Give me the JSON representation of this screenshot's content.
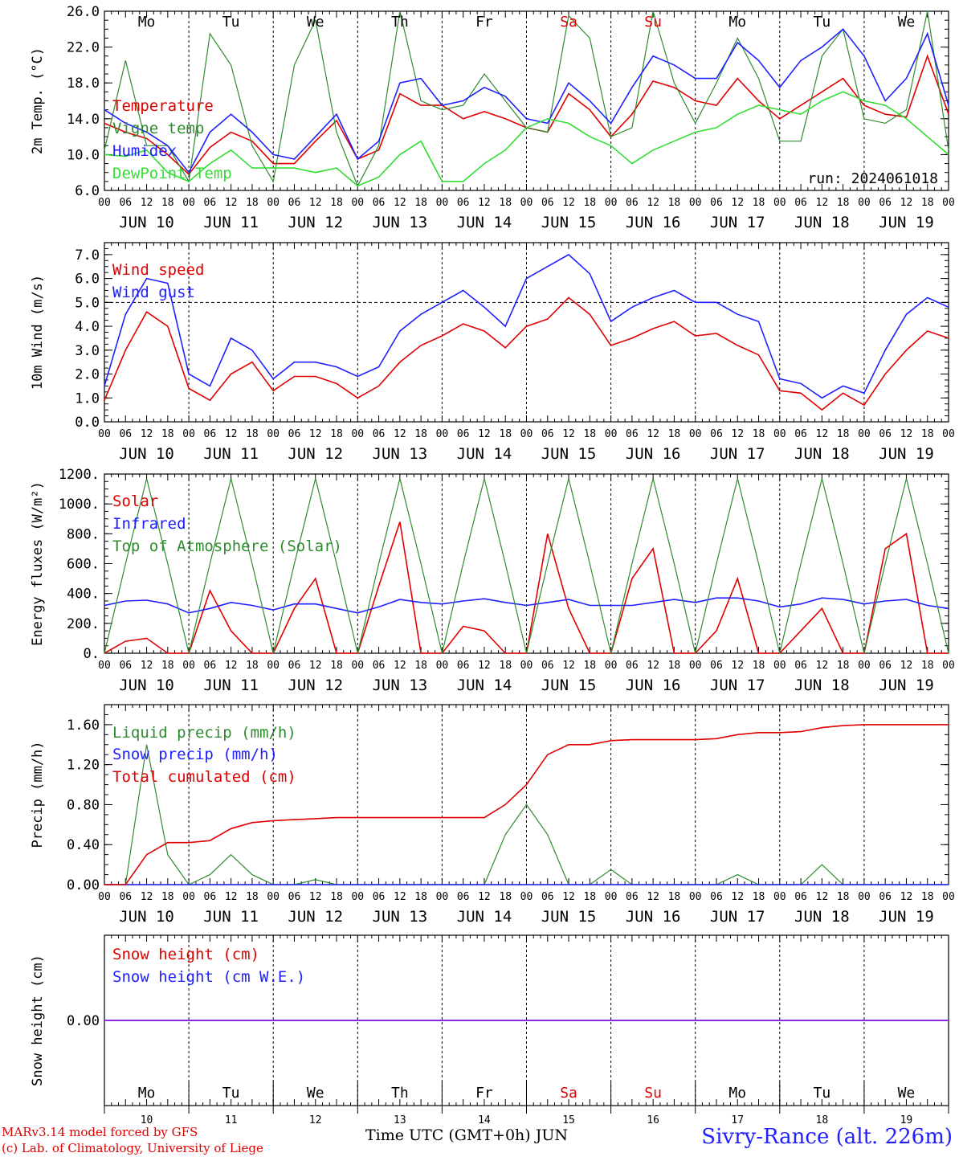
{
  "panel_day_labels": [
    "Mo",
    "Tu",
    "We",
    "Th",
    "Fr",
    "Sa",
    "Su",
    "Mo",
    "Tu",
    "We"
  ],
  "weekend_color": "#e00000",
  "hour_ticks": [
    "00",
    "06",
    "12",
    "18"
  ],
  "date_labels": [
    "JUN 10",
    "JUN 11",
    "JUN 12",
    "JUN 13",
    "JUN 14",
    "JUN 15",
    "JUN 16",
    "JUN 17",
    "JUN 18",
    "JUN 19"
  ],
  "bottom_day_numbers": [
    "10",
    "11",
    "12",
    "13",
    "14",
    "15",
    "16",
    "17",
    "18",
    "19"
  ],
  "footer": {
    "model": "MARv3.14 model forced by GFS",
    "lab": "(c) Lab. of Climatology, University of Liege",
    "axis_title": "Time UTC (GMT+0h) JUN",
    "station": "Sivry-Rance (alt. 226m)"
  },
  "chart_data": [
    {
      "type": "line",
      "ylabel": "2m Temp. (°C)",
      "ylim": [
        6,
        26
      ],
      "yticks": [
        "6.0",
        "10.0",
        "14.0",
        "18.0",
        "22.0",
        "26.0"
      ],
      "annotation": "run: 2024061018",
      "x_hours": [
        0,
        6,
        12,
        18,
        24,
        30,
        36,
        42,
        48,
        54,
        60,
        66,
        72,
        78,
        84,
        90,
        96,
        102,
        108,
        114,
        120,
        126,
        132,
        138,
        144,
        150,
        156,
        162,
        168,
        174,
        180,
        186,
        192,
        198,
        204,
        210,
        216,
        222,
        228,
        234,
        240
      ],
      "series": [
        {
          "name": "Temperature",
          "color": "#e00000",
          "values": [
            13.5,
            12.5,
            11.8,
            10.0,
            7.8,
            10.8,
            12.5,
            11.5,
            9.0,
            9.0,
            11.5,
            13.8,
            9.5,
            10.5,
            16.8,
            15.5,
            15.5,
            14.0,
            14.8,
            14.0,
            13.0,
            12.5,
            16.8,
            15.0,
            12.0,
            14.5,
            18.2,
            17.5,
            16.0,
            15.5,
            18.5,
            16.0,
            14.0,
            15.5,
            17.0,
            18.5,
            15.5,
            14.5,
            14.2,
            21.0,
            14.5
          ]
        },
        {
          "name": "Vigne temp",
          "color": "#2e8b2e",
          "values": [
            10.5,
            20.5,
            11.0,
            11.0,
            7.0,
            23.5,
            20.0,
            11.0,
            7.0,
            20.0,
            25.0,
            12.5,
            6.5,
            11.0,
            26.0,
            16.0,
            15.0,
            15.5,
            19.0,
            16.0,
            13.0,
            12.5,
            25.5,
            23.0,
            12.0,
            13.0,
            26.0,
            18.0,
            13.5,
            18.0,
            23.0,
            18.5,
            11.5,
            11.5,
            21.0,
            24.0,
            14.0,
            13.5,
            15.0,
            26.0,
            10.5
          ]
        },
        {
          "name": "Humidex",
          "color": "#2020ff",
          "values": [
            15.0,
            13.5,
            12.5,
            11.0,
            8.0,
            12.5,
            14.5,
            12.5,
            10.0,
            9.5,
            12.0,
            14.5,
            9.5,
            11.5,
            18.0,
            18.5,
            15.5,
            16.0,
            17.5,
            16.5,
            14.0,
            13.5,
            18.0,
            16.0,
            13.5,
            17.5,
            21.0,
            20.0,
            18.5,
            18.5,
            22.5,
            20.5,
            17.5,
            20.5,
            22.0,
            24.0,
            21.0,
            16.0,
            18.5,
            23.5,
            15.5
          ]
        },
        {
          "name": "DewPoint Temp",
          "color": "#33dd33",
          "values": [
            10.0,
            9.8,
            10.5,
            8.0,
            7.0,
            9.0,
            10.5,
            8.5,
            8.5,
            8.5,
            8.0,
            8.5,
            6.5,
            7.5,
            10.0,
            11.5,
            7.0,
            7.0,
            9.0,
            10.5,
            13.0,
            14.0,
            13.5,
            12.0,
            11.0,
            9.0,
            10.5,
            11.5,
            12.5,
            13.0,
            14.5,
            15.5,
            15.0,
            14.5,
            16.0,
            17.0,
            16.0,
            15.5,
            14.0,
            12.0,
            10.0
          ]
        }
      ]
    },
    {
      "type": "line",
      "ylabel": "10m Wind (m/s)",
      "ylim": [
        0,
        7.5
      ],
      "yticks": [
        "0.0",
        "1.0",
        "2.0",
        "3.0",
        "4.0",
        "5.0",
        "6.0",
        "7.0"
      ],
      "reference_line": 5.0,
      "x_hours": [
        0,
        6,
        12,
        18,
        24,
        30,
        36,
        42,
        48,
        54,
        60,
        66,
        72,
        78,
        84,
        90,
        96,
        102,
        108,
        114,
        120,
        126,
        132,
        138,
        144,
        150,
        156,
        162,
        168,
        174,
        180,
        186,
        192,
        198,
        204,
        210,
        216,
        222,
        228,
        234,
        240
      ],
      "series": [
        {
          "name": "Wind speed",
          "color": "#e00000",
          "values": [
            0.9,
            3.0,
            4.6,
            4.0,
            1.4,
            0.9,
            2.0,
            2.5,
            1.3,
            1.9,
            1.9,
            1.6,
            1.0,
            1.5,
            2.5,
            3.2,
            3.6,
            4.1,
            3.8,
            3.1,
            4.0,
            4.3,
            5.2,
            4.5,
            3.2,
            3.5,
            3.9,
            4.2,
            3.6,
            3.7,
            3.2,
            2.8,
            1.3,
            1.2,
            0.5,
            1.2,
            0.7,
            2.0,
            3.0,
            3.8,
            3.5
          ]
        },
        {
          "name": "Wind gust",
          "color": "#2020ff",
          "values": [
            1.5,
            4.5,
            6.0,
            5.8,
            2.0,
            1.5,
            3.5,
            3.0,
            1.8,
            2.5,
            2.5,
            2.3,
            1.9,
            2.3,
            3.8,
            4.5,
            5.0,
            5.5,
            4.8,
            4.0,
            6.0,
            6.5,
            7.0,
            6.2,
            4.2,
            4.8,
            5.2,
            5.5,
            5.0,
            5.0,
            4.5,
            4.2,
            1.8,
            1.6,
            1.0,
            1.5,
            1.2,
            3.0,
            4.5,
            5.2,
            4.8
          ]
        }
      ]
    },
    {
      "type": "line",
      "ylabel": "Energy fluxes (W/m²)",
      "ylim": [
        0,
        1200
      ],
      "yticks": [
        "0.",
        "200.",
        "400.",
        "600.",
        "800.",
        "1000.",
        "1200."
      ],
      "x_hours": [
        0,
        6,
        12,
        18,
        24,
        30,
        36,
        42,
        48,
        54,
        60,
        66,
        72,
        78,
        84,
        90,
        96,
        102,
        108,
        114,
        120,
        126,
        132,
        138,
        144,
        150,
        156,
        162,
        168,
        174,
        180,
        186,
        192,
        198,
        204,
        210,
        216,
        222,
        228,
        234,
        240
      ],
      "series": [
        {
          "name": "Solar",
          "color": "#e00000",
          "values": [
            0,
            80,
            100,
            0,
            0,
            420,
            150,
            0,
            0,
            300,
            500,
            0,
            0,
            450,
            880,
            0,
            0,
            180,
            150,
            0,
            0,
            800,
            300,
            0,
            0,
            500,
            700,
            0,
            0,
            150,
            500,
            0,
            0,
            150,
            300,
            0,
            0,
            700,
            800,
            0,
            0
          ]
        },
        {
          "name": "Infrared",
          "color": "#2020ff",
          "values": [
            320,
            350,
            355,
            330,
            270,
            300,
            340,
            320,
            290,
            330,
            330,
            300,
            270,
            310,
            360,
            340,
            330,
            350,
            365,
            340,
            320,
            340,
            360,
            320,
            320,
            320,
            340,
            360,
            340,
            370,
            370,
            350,
            310,
            330,
            370,
            360,
            330,
            350,
            360,
            320,
            300
          ]
        },
        {
          "name": "Top of Atmosphere (Solar)",
          "color": "#2e8b2e",
          "values": [
            0,
            600,
            1170,
            600,
            0,
            600,
            1170,
            600,
            0,
            600,
            1170,
            600,
            0,
            600,
            1170,
            600,
            0,
            600,
            1170,
            600,
            0,
            600,
            1170,
            600,
            0,
            600,
            1170,
            600,
            0,
            600,
            1170,
            600,
            0,
            600,
            1170,
            600,
            0,
            600,
            1170,
            600,
            0
          ]
        }
      ]
    },
    {
      "type": "line",
      "ylabel": "Precip (mm/h)",
      "ylim": [
        0,
        1.8
      ],
      "yticks": [
        "0.00",
        "0.40",
        "0.80",
        "1.20",
        "1.60"
      ],
      "x_hours": [
        0,
        6,
        12,
        18,
        24,
        30,
        36,
        42,
        48,
        54,
        60,
        66,
        72,
        78,
        84,
        90,
        96,
        102,
        108,
        114,
        120,
        126,
        132,
        138,
        144,
        150,
        156,
        162,
        168,
        174,
        180,
        186,
        192,
        198,
        204,
        210,
        216,
        222,
        228,
        234,
        240
      ],
      "series": [
        {
          "name": "Liquid precip (mm/h)",
          "color": "#2e8b2e",
          "values": [
            0,
            0,
            1.4,
            0.3,
            0,
            0.1,
            0.3,
            0.1,
            0,
            0,
            0.05,
            0,
            0,
            0,
            0,
            0,
            0,
            0,
            0,
            0.5,
            0.8,
            0.5,
            0,
            0,
            0.15,
            0,
            0,
            0,
            0,
            0,
            0.1,
            0,
            0,
            0,
            0.2,
            0,
            0,
            0,
            0,
            0,
            0
          ]
        },
        {
          "name": "Snow precip (mm/h)",
          "color": "#2020ff",
          "values": [
            0,
            0,
            0,
            0,
            0,
            0,
            0,
            0,
            0,
            0,
            0,
            0,
            0,
            0,
            0,
            0,
            0,
            0,
            0,
            0,
            0,
            0,
            0,
            0,
            0,
            0,
            0,
            0,
            0,
            0,
            0,
            0,
            0,
            0,
            0,
            0,
            0,
            0,
            0,
            0,
            0
          ]
        },
        {
          "name": "Total cumulated (cm)",
          "color": "#e00000",
          "values": [
            0,
            0,
            0.3,
            0.42,
            0.42,
            0.44,
            0.56,
            0.62,
            0.64,
            0.65,
            0.66,
            0.67,
            0.67,
            0.67,
            0.67,
            0.67,
            0.67,
            0.67,
            0.67,
            0.8,
            1.0,
            1.3,
            1.4,
            1.4,
            1.44,
            1.45,
            1.45,
            1.45,
            1.45,
            1.46,
            1.5,
            1.52,
            1.52,
            1.53,
            1.57,
            1.59,
            1.6,
            1.6,
            1.6,
            1.6,
            1.6
          ]
        }
      ]
    },
    {
      "type": "line",
      "ylabel": "Snow height (cm)",
      "ylim": [
        -1,
        1
      ],
      "yticks": [
        "0.00"
      ],
      "x_hours": [
        0,
        240
      ],
      "series": [
        {
          "name": "Snow height (cm)",
          "color": "#e00000",
          "values": [
            0,
            0
          ]
        },
        {
          "name": "Snow height (cm W.E.)",
          "color": "#2020ff",
          "values": [
            0,
            0
          ]
        }
      ]
    }
  ]
}
